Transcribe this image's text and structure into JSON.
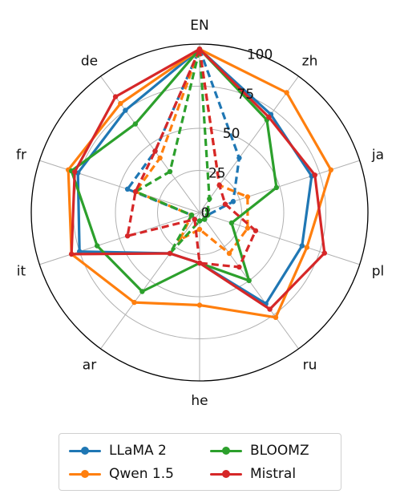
{
  "chart_data": {
    "type": "radar",
    "axes": [
      "EN",
      "zh",
      "ja",
      "pl",
      "ru",
      "he",
      "ar",
      "it",
      "fr",
      "de"
    ],
    "radial_ticks": [
      "0",
      "25",
      "50",
      "75",
      "100"
    ],
    "rmax": 100,
    "grid": true,
    "legend_position": "bottom",
    "series": [
      {
        "name": "LLaMA 2",
        "color": "#1f77b4",
        "solid": [
          97,
          72,
          70,
          64,
          67,
          30,
          30,
          75,
          76,
          75
        ],
        "dashed": [
          97,
          40,
          21,
          5,
          5,
          5,
          5,
          5,
          45,
          45
        ]
      },
      {
        "name": "Qwen 1.5",
        "color": "#ff7f0e",
        "solid": [
          97,
          88,
          82,
          67,
          77,
          55,
          66,
          80,
          82,
          80
        ],
        "dashed": [
          97,
          20,
          30,
          30,
          30,
          10,
          20,
          5,
          40,
          40
        ]
      },
      {
        "name": "BLOOMZ",
        "color": "#2ca02c",
        "solid": [
          97,
          68,
          48,
          20,
          50,
          30,
          58,
          64,
          80,
          65
        ],
        "dashed": [
          97,
          10,
          5,
          5,
          5,
          5,
          30,
          5,
          40,
          30
        ]
      },
      {
        "name": "Mistral",
        "color": "#d62728",
        "solid": [
          97,
          70,
          72,
          78,
          71,
          30,
          30,
          80,
          78,
          85
        ],
        "dashed": [
          97,
          20,
          16,
          35,
          40,
          30,
          5,
          45,
          40,
          45
        ]
      }
    ]
  }
}
